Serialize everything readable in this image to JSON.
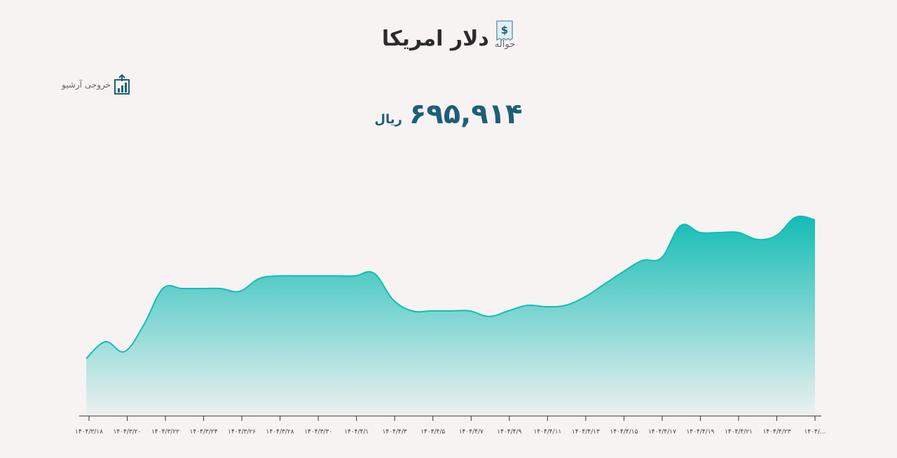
{
  "header": {
    "title": "دلار امریکا",
    "subtitle": "حواله",
    "icon": "dollar-receipt-icon",
    "accent": "#1d5f78"
  },
  "export": {
    "label": "خروجی آرشیو",
    "icon": "chart-export-icon"
  },
  "price": {
    "value": "۶۹۵,۹۱۴",
    "unit": "ریال"
  },
  "chart_data": {
    "type": "area",
    "color": "#14bcb6",
    "grid": false,
    "x_tick_labels": [
      "۱۴۰۴/۳/۱۸",
      "۱۴۰۴/۳/۲۰",
      "۱۴۰۴/۳/۲۲",
      "۱۴۰۴/۳/۲۴",
      "۱۴۰۴/۳/۲۶",
      "۱۴۰۴/۳/۲۸",
      "۱۴۰۴/۳/۳۰",
      "۱۴۰۴/۴/۱",
      "۱۴۰۴/۴/۳",
      "۱۴۰۴/۴/۵",
      "۱۴۰۴/۴/۷",
      "۱۴۰۴/۴/۹",
      "۱۴۰۴/۴/۱۱",
      "۱۴۰۴/۴/۱۳",
      "۱۴۰۴/۴/۱۵",
      "۱۴۰۴/۴/۱۷",
      "۱۴۰۴/۴/۱۹",
      "۱۴۰۴/۴/۲۱",
      "۱۴۰۴/۴/۲۳",
      "۱۴۰۴/..."
    ],
    "x": [
      "1404/3/18",
      "1404/3/19",
      "1404/3/20",
      "1404/3/21",
      "1404/3/22",
      "1404/3/23",
      "1404/3/24",
      "1404/3/25",
      "1404/3/26",
      "1404/3/27",
      "1404/3/28",
      "1404/3/29",
      "1404/3/30",
      "1404/3/31",
      "1404/4/1",
      "1404/4/2",
      "1404/4/3",
      "1404/4/4",
      "1404/4/5",
      "1404/4/6",
      "1404/4/7",
      "1404/4/8",
      "1404/4/9",
      "1404/4/10",
      "1404/4/11",
      "1404/4/12",
      "1404/4/13",
      "1404/4/14",
      "1404/4/15",
      "1404/4/16",
      "1404/4/17",
      "1404/4/18",
      "1404/4/19",
      "1404/4/20",
      "1404/4/21",
      "1404/4/22",
      "1404/4/23",
      "1404/4/24",
      "1404/4/25"
    ],
    "values": [
      650000,
      662000,
      655000,
      674000,
      700000,
      700000,
      700000,
      700000,
      698000,
      707000,
      709000,
      709000,
      709000,
      709000,
      709000,
      711000,
      692000,
      684000,
      684000,
      684000,
      684000,
      680000,
      684000,
      688000,
      687000,
      688000,
      694000,
      703000,
      712000,
      720000,
      722000,
      745000,
      740000,
      740000,
      740000,
      735000,
      738000,
      751000,
      749000
    ],
    "ylim": [
      610000,
      760000
    ]
  }
}
